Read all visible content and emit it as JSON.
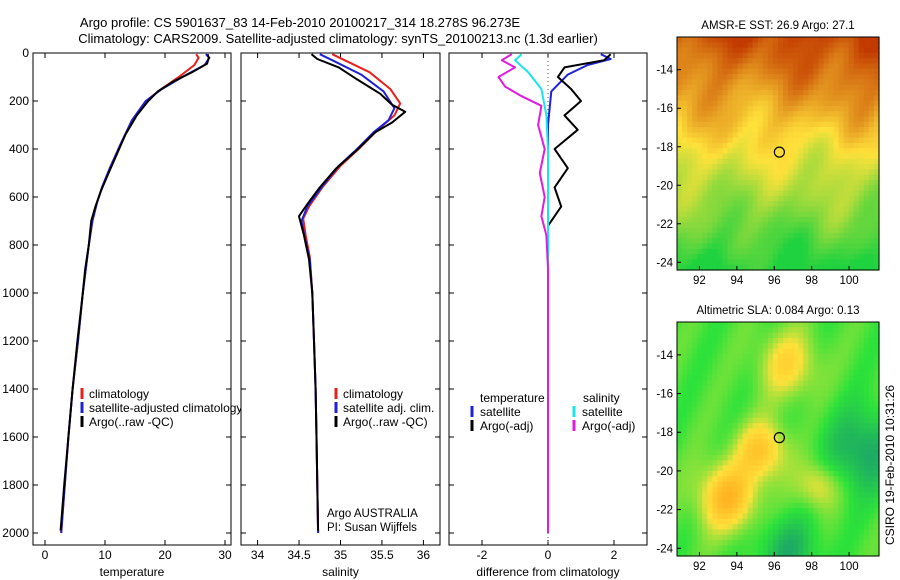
{
  "figure": {
    "title_line1": "Argo profile: CS 5901637_83 14-Feb-2010 20100217_314 18.278S 96.273E",
    "title_line2": "Climatology: CARS2009. Satellite-adjusted climatology: synTS_20100213.nc (1.3d earlier)",
    "side_stamp": "CSIRO 19-Feb-2010 10:31:26",
    "footer_line1": "Argo AUSTRALIA",
    "footer_line2": "PI: Susan Wijffels",
    "colors": {
      "climatology": "#e8201c",
      "satellite": "#1c22d8",
      "argo": "#000000",
      "sat_salinity": "#19e6ea",
      "argo_adj_salinity": "#e21be0",
      "frame": "#000000"
    }
  },
  "chart_data": [
    {
      "id": "temperature",
      "type": "line",
      "xlabel": "temperature",
      "ylabel": "",
      "xlim": [
        -2,
        31
      ],
      "ylim": [
        2050,
        0
      ],
      "xticks": [
        0,
        10,
        20,
        30
      ],
      "yticks": [
        0,
        200,
        400,
        600,
        800,
        1000,
        1200,
        1400,
        1600,
        1800,
        2000
      ],
      "y_inverted": true,
      "legend": [
        "climatology",
        "satellite-adjusted climatology",
        "Argo(..raw -QC)"
      ],
      "series": [
        {
          "name": "climatology",
          "color": "#e8201c",
          "points": [
            [
              25.2,
              5
            ],
            [
              25.6,
              20
            ],
            [
              24.9,
              50
            ],
            [
              22.3,
              100
            ],
            [
              19.4,
              150
            ],
            [
              16.8,
              200
            ],
            [
              14.5,
              280
            ],
            [
              12.6,
              380
            ],
            [
              10.8,
              480
            ],
            [
              9.5,
              560
            ],
            [
              8.7,
              620
            ],
            [
              7.9,
              700
            ],
            [
              7.3,
              800
            ],
            [
              6.8,
              900
            ],
            [
              6.3,
              1000
            ],
            [
              5.5,
              1200
            ],
            [
              4.6,
              1400
            ],
            [
              3.9,
              1600
            ],
            [
              3.3,
              1800
            ],
            [
              2.7,
              2000
            ]
          ]
        },
        {
          "name": "satellite-adjusted climatology",
          "color": "#1c22d8",
          "points": [
            [
              26.8,
              5
            ],
            [
              27.4,
              20
            ],
            [
              26.6,
              50
            ],
            [
              22.9,
              100
            ],
            [
              19.5,
              150
            ],
            [
              16.8,
              200
            ],
            [
              14.5,
              280
            ],
            [
              12.6,
              380
            ],
            [
              10.8,
              480
            ],
            [
              9.5,
              560
            ],
            [
              8.7,
              620
            ],
            [
              7.9,
              700
            ],
            [
              7.3,
              800
            ],
            [
              6.8,
              900
            ],
            [
              6.3,
              1000
            ],
            [
              5.5,
              1200
            ],
            [
              4.6,
              1400
            ],
            [
              3.9,
              1600
            ],
            [
              3.3,
              1800
            ],
            [
              2.7,
              2000
            ]
          ]
        },
        {
          "name": "Argo(..raw -QC)",
          "color": "#000000",
          "points": [
            [
              27.1,
              5
            ],
            [
              27.3,
              20
            ],
            [
              27.0,
              45
            ],
            [
              24.5,
              80
            ],
            [
              21.3,
              120
            ],
            [
              18.8,
              160
            ],
            [
              17.2,
              200
            ],
            [
              15.3,
              260
            ],
            [
              13.4,
              340
            ],
            [
              12.0,
              420
            ],
            [
              10.6,
              500
            ],
            [
              9.4,
              570
            ],
            [
              8.4,
              640
            ],
            [
              7.7,
              700
            ],
            [
              7.3,
              800
            ],
            [
              6.7,
              900
            ],
            [
              6.3,
              1000
            ],
            [
              5.4,
              1200
            ],
            [
              4.6,
              1400
            ],
            [
              3.9,
              1600
            ],
            [
              3.2,
              1800
            ],
            [
              2.6,
              1990
            ]
          ]
        }
      ]
    },
    {
      "id": "salinity",
      "type": "line",
      "xlabel": "salinity",
      "ylabel": "",
      "xlim": [
        33.8,
        36.2
      ],
      "ylim": [
        2050,
        0
      ],
      "xticks": [
        34,
        34.5,
        35,
        35.5,
        36
      ],
      "y_inverted": true,
      "legend": [
        "climatology",
        "satellite adj. clim.",
        "Argo(..raw -QC)"
      ],
      "series": [
        {
          "name": "climatology",
          "color": "#e8201c",
          "points": [
            [
              34.9,
              5
            ],
            [
              35.05,
              30
            ],
            [
              35.35,
              80
            ],
            [
              35.6,
              150
            ],
            [
              35.72,
              210
            ],
            [
              35.65,
              260
            ],
            [
              35.45,
              320
            ],
            [
              35.22,
              400
            ],
            [
              35.0,
              470
            ],
            [
              34.78,
              560
            ],
            [
              34.62,
              640
            ],
            [
              34.55,
              690
            ],
            [
              34.58,
              760
            ],
            [
              34.63,
              850
            ],
            [
              34.66,
              1000
            ],
            [
              34.68,
              1200
            ],
            [
              34.7,
              1400
            ],
            [
              34.71,
              1600
            ],
            [
              34.72,
              1800
            ],
            [
              34.73,
              2000
            ]
          ]
        },
        {
          "name": "satellite adj. clim.",
          "color": "#1c22d8",
          "points": [
            [
              34.75,
              5
            ],
            [
              34.9,
              30
            ],
            [
              35.25,
              90
            ],
            [
              35.52,
              160
            ],
            [
              35.65,
              230
            ],
            [
              35.58,
              280
            ],
            [
              35.4,
              330
            ],
            [
              35.2,
              400
            ],
            [
              34.98,
              470
            ],
            [
              34.77,
              560
            ],
            [
              34.6,
              640
            ],
            [
              34.53,
              700
            ],
            [
              34.57,
              770
            ],
            [
              34.63,
              860
            ],
            [
              34.66,
              1000
            ],
            [
              34.68,
              1200
            ],
            [
              34.7,
              1400
            ],
            [
              34.71,
              1600
            ],
            [
              34.72,
              1800
            ],
            [
              34.73,
              2000
            ]
          ]
        },
        {
          "name": "Argo(..raw -QC)",
          "color": "#000000",
          "points": [
            [
              34.65,
              5
            ],
            [
              34.72,
              25
            ],
            [
              34.98,
              60
            ],
            [
              35.2,
              110
            ],
            [
              35.48,
              170
            ],
            [
              35.62,
              215
            ],
            [
              35.78,
              245
            ],
            [
              35.62,
              290
            ],
            [
              35.42,
              330
            ],
            [
              35.18,
              410
            ],
            [
              34.95,
              480
            ],
            [
              34.75,
              560
            ],
            [
              34.6,
              630
            ],
            [
              34.5,
              680
            ],
            [
              34.56,
              760
            ],
            [
              34.62,
              860
            ],
            [
              34.66,
              1000
            ],
            [
              34.68,
              1200
            ],
            [
              34.7,
              1400
            ],
            [
              34.71,
              1600
            ],
            [
              34.72,
              1800
            ],
            [
              34.73,
              1990
            ]
          ]
        }
      ]
    },
    {
      "id": "difference",
      "type": "line",
      "xlabel": "difference from climatology",
      "ylabel": "",
      "xlim": [
        -3,
        3
      ],
      "ylim": [
        2050,
        0
      ],
      "xticks": [
        -2,
        0,
        2
      ],
      "y_inverted": true,
      "legend_headers": [
        "temperature",
        "salinity"
      ],
      "legend": [
        "satellite",
        "Argo(-adj)",
        "satellite",
        "Argo(-adj)"
      ],
      "series": [
        {
          "name": "satellite",
          "color": "#1c22d8",
          "points": [
            [
              1.6,
              5
            ],
            [
              1.9,
              25
            ],
            [
              1.2,
              50
            ],
            [
              0.6,
              90
            ],
            [
              0.1,
              160
            ],
            [
              0.0,
              300
            ],
            [
              0.0,
              500
            ],
            [
              0.0,
              800
            ],
            [
              0.0,
              1200
            ],
            [
              0.0,
              1600
            ],
            [
              0.0,
              2000
            ]
          ]
        },
        {
          "name": "Argo(-adj)",
          "color": "#000000",
          "points": [
            [
              1.9,
              5
            ],
            [
              1.7,
              30
            ],
            [
              0.5,
              60
            ],
            [
              0.3,
              100
            ],
            [
              0.7,
              150
            ],
            [
              1.0,
              200
            ],
            [
              0.5,
              260
            ],
            [
              0.9,
              320
            ],
            [
              0.2,
              400
            ],
            [
              0.6,
              480
            ],
            [
              0.2,
              560
            ],
            [
              0.4,
              640
            ],
            [
              0.0,
              720
            ],
            [
              0.0,
              800
            ],
            [
              0.0,
              1000
            ],
            [
              0.0,
              1400
            ],
            [
              0.0,
              1800
            ],
            [
              0.0,
              2000
            ]
          ]
        },
        {
          "name": "satellite",
          "color": "#19e6ea",
          "points": [
            [
              -0.8,
              5
            ],
            [
              -1.0,
              30
            ],
            [
              -0.6,
              80
            ],
            [
              -0.2,
              150
            ],
            [
              -0.05,
              260
            ],
            [
              0.0,
              400
            ],
            [
              0.0,
              700
            ],
            [
              0.0,
              1000
            ],
            [
              0.0,
              1400
            ],
            [
              0.0,
              1800
            ],
            [
              0.0,
              2000
            ]
          ]
        },
        {
          "name": "Argo(-adj)",
          "color": "#e21be0",
          "points": [
            [
              -1.1,
              5
            ],
            [
              -1.4,
              30
            ],
            [
              -1.0,
              60
            ],
            [
              -1.5,
              100
            ],
            [
              -1.3,
              140
            ],
            [
              -0.8,
              180
            ],
            [
              -0.2,
              220
            ],
            [
              -0.3,
              300
            ],
            [
              -0.1,
              400
            ],
            [
              -0.25,
              500
            ],
            [
              -0.1,
              600
            ],
            [
              -0.2,
              680
            ],
            [
              -0.05,
              760
            ],
            [
              0.0,
              900
            ],
            [
              0.0,
              1200
            ],
            [
              0.0,
              1600
            ],
            [
              0.0,
              2000
            ]
          ]
        }
      ]
    },
    {
      "id": "sst-map",
      "type": "heatmap",
      "title": "AMSR-E SST: 26.9 Argo: 27.1",
      "xlim": [
        90.8,
        101.6
      ],
      "ylim": [
        -24.4,
        -12.3
      ],
      "xticks": [
        92,
        94,
        96,
        98,
        100
      ],
      "yticks": [
        -14,
        -16,
        -18,
        -20,
        -22,
        -24
      ],
      "profile_location": [
        96.273,
        -18.278
      ],
      "colorscale": [
        "#c23a00",
        "#ffe13a",
        "#1fd23f"
      ]
    },
    {
      "id": "sla-map",
      "type": "heatmap",
      "title": "Altimetric SLA: 0.084 Argo: 0.13",
      "xlim": [
        90.8,
        101.6
      ],
      "ylim": [
        -24.4,
        -12.3
      ],
      "xticks": [
        92,
        94,
        96,
        98,
        100
      ],
      "yticks": [
        -14,
        -16,
        -18,
        -20,
        -22,
        -24
      ],
      "profile_location": [
        96.273,
        -18.278
      ],
      "colorscale": [
        "#1aa36a",
        "#2de23a",
        "#ffe13a",
        "#ffb020"
      ]
    }
  ]
}
